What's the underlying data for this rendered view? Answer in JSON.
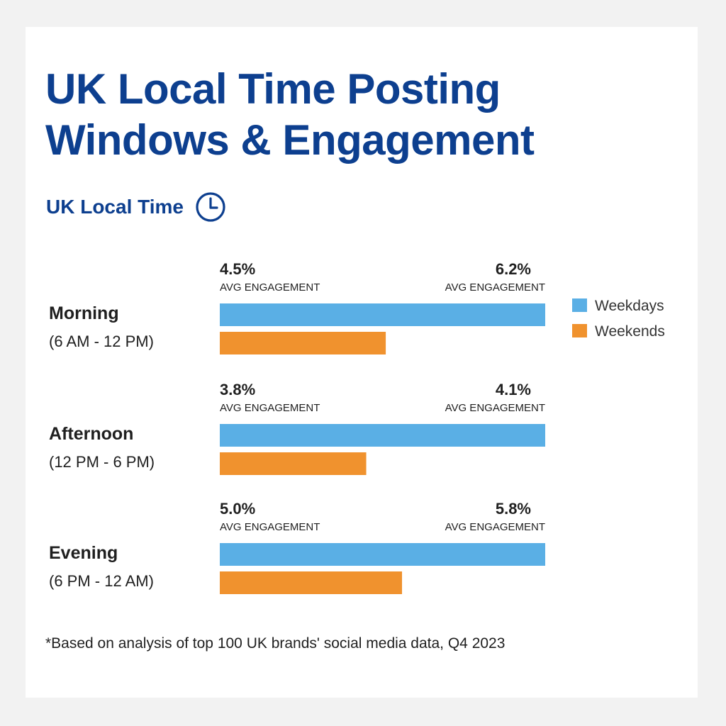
{
  "header": {
    "title_line1": "UK Local Time Posting",
    "title_line2": "Windows & Engagement",
    "subtitle": "UK Local Time"
  },
  "icons": {
    "subtitle_icon": "clock-icon"
  },
  "colors": {
    "title": "#0d3f8f",
    "weekdays": "#5aafe5",
    "weekends": "#f0922e",
    "text": "#1f1f1f"
  },
  "footnote": "*Based on analysis of top 100 UK brands' social media data, Q4 2023",
  "chart_data": {
    "type": "bar",
    "orientation": "horizontal",
    "title": "UK Local Time Posting Windows & Engagement",
    "subtitle": "UK Local Time",
    "categories": [
      {
        "name": "Morning",
        "range": "(6 AM - 12 PM)"
      },
      {
        "name": "Afternoon",
        "range": "(12 PM - 6 PM)"
      },
      {
        "name": "Evening",
        "range": "(6 PM - 12 AM)"
      }
    ],
    "value_caption": "AVG ENGAGEMENT",
    "series": [
      {
        "name": "Weekdays",
        "color": "#5aafe5",
        "values": [
          100,
          100,
          100
        ]
      },
      {
        "name": "Weekends",
        "color": "#f0922e",
        "values": [
          51,
          45,
          56
        ]
      }
    ],
    "bar_value_unit": "% of weekday bar length",
    "annotations": [
      {
        "left": "4.5%",
        "right": "6.2%"
      },
      {
        "left": "3.8%",
        "right": "4.1%"
      },
      {
        "left": "5.0%",
        "right": "5.8%"
      }
    ],
    "legend_position": "top-right",
    "grid": false,
    "axes_visible": false
  }
}
